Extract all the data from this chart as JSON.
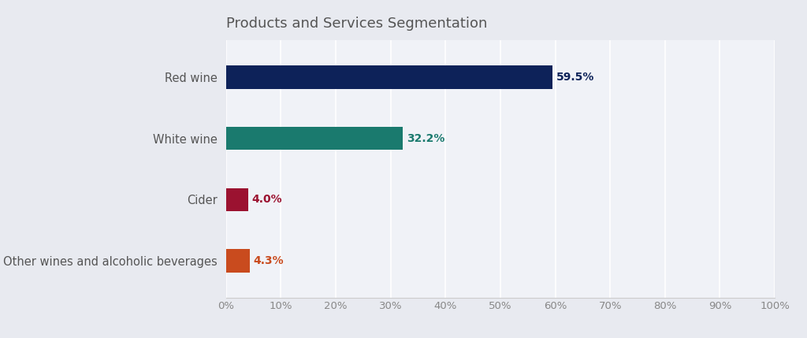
{
  "title": "Products and Services Segmentation",
  "categories": [
    "Other wines and alcoholic beverages",
    "Cider",
    "White wine",
    "Red wine"
  ],
  "values": [
    4.3,
    4.0,
    32.2,
    59.5
  ],
  "bar_colors": [
    "#c94b1e",
    "#9b1230",
    "#1a7a6e",
    "#0d2259"
  ],
  "label_colors": [
    "#c94b1e",
    "#9b1230",
    "#1a7a6e",
    "#0d2259"
  ],
  "figure_bg_color": "#e8eaf0",
  "plot_bg_color": "#f0f2f7",
  "title_color": "#555555",
  "tick_label_color": "#888888",
  "category_label_color": "#555555",
  "xlim": [
    0,
    100
  ],
  "xticks": [
    0,
    10,
    20,
    30,
    40,
    50,
    60,
    70,
    80,
    90,
    100
  ],
  "bar_height": 0.38,
  "title_fontsize": 13,
  "label_fontsize": 10,
  "tick_fontsize": 9.5,
  "category_fontsize": 10.5,
  "grid_color": "#ffffff",
  "bottom_line_color": "#cccccc"
}
